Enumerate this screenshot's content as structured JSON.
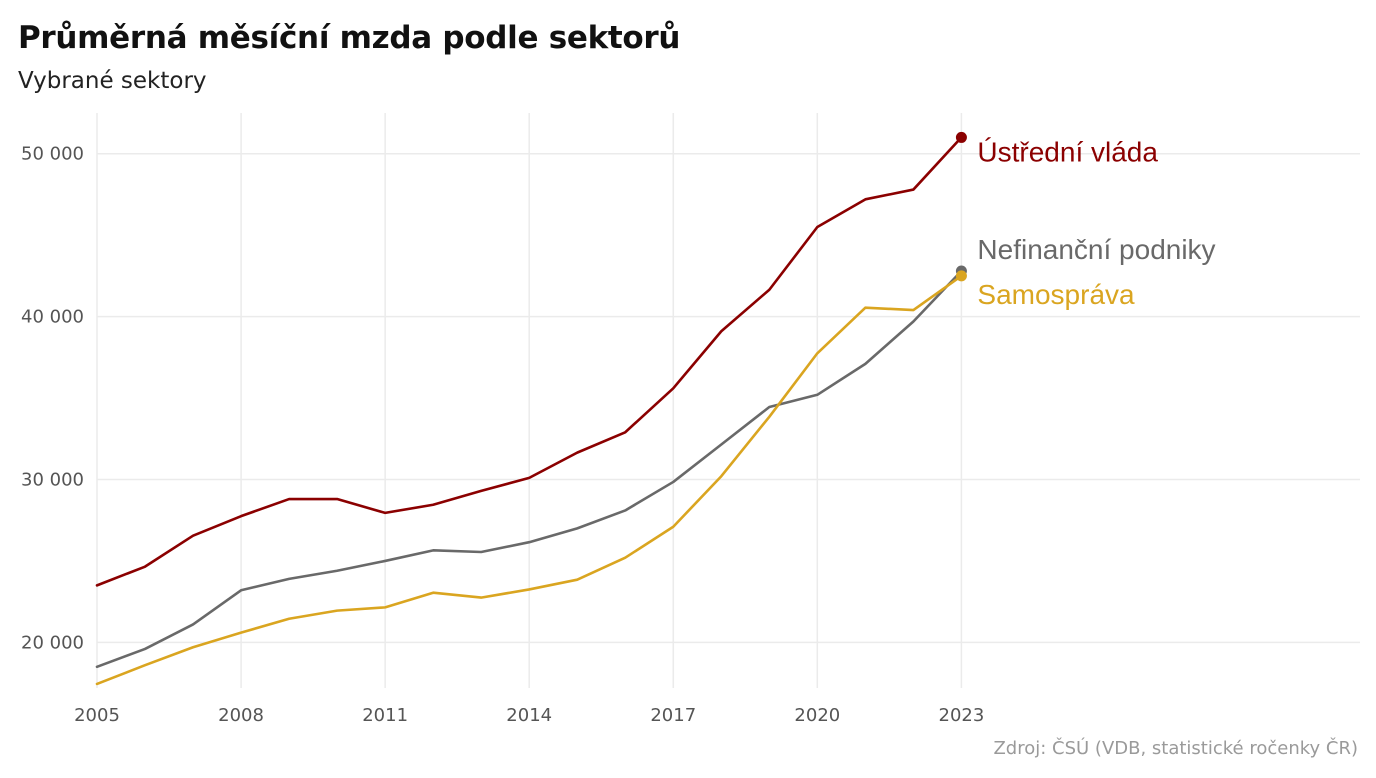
{
  "chart_data": {
    "type": "line",
    "title": "Průměrná měsíční mzda podle sektorů",
    "subtitle": "Vybrané sektory",
    "caption": "Zdroj: ČSÚ (VDB, statistické ročenky ČR)",
    "xlabel": "",
    "ylabel": "",
    "x": [
      2005,
      2006,
      2007,
      2008,
      2009,
      2010,
      2011,
      2012,
      2013,
      2014,
      2015,
      2016,
      2017,
      2018,
      2019,
      2020,
      2021,
      2022,
      2023
    ],
    "xticks": [
      2005,
      2008,
      2011,
      2014,
      2017,
      2020,
      2023
    ],
    "xtick_labels": [
      "2005",
      "2008",
      "2011",
      "2014",
      "2017",
      "2020",
      "2023"
    ],
    "yticks": [
      20000,
      30000,
      40000,
      50000
    ],
    "ytick_labels": [
      "20 000",
      "30 000",
      "40 000",
      "50 000"
    ],
    "xlim": [
      2005,
      2031.3
    ],
    "ylim": [
      17200,
      52500
    ],
    "grid": true,
    "legend": "direct labels at line ends",
    "series": [
      {
        "name": "Ústřední vláda",
        "color": "#8B0000",
        "values": [
          23500,
          24650,
          26550,
          27750,
          28800,
          28800,
          27950,
          28450,
          29300,
          30100,
          31650,
          32900,
          35600,
          39100,
          41650,
          45500,
          47200,
          47800,
          51000
        ]
      },
      {
        "name": "Nefinanční podniky",
        "color": "#696969",
        "values": [
          18500,
          19600,
          21100,
          23200,
          23900,
          24400,
          25000,
          25650,
          25550,
          26150,
          27000,
          28100,
          29850,
          32150,
          34450,
          35200,
          37100,
          39700,
          42800
        ]
      },
      {
        "name": "Samospráva",
        "color": "#DAA520",
        "values": [
          17450,
          18600,
          19700,
          20600,
          21450,
          21950,
          22150,
          23050,
          22750,
          23250,
          23850,
          25200,
          27100,
          30200,
          33850,
          37750,
          40550,
          40400,
          42500
        ]
      }
    ]
  }
}
